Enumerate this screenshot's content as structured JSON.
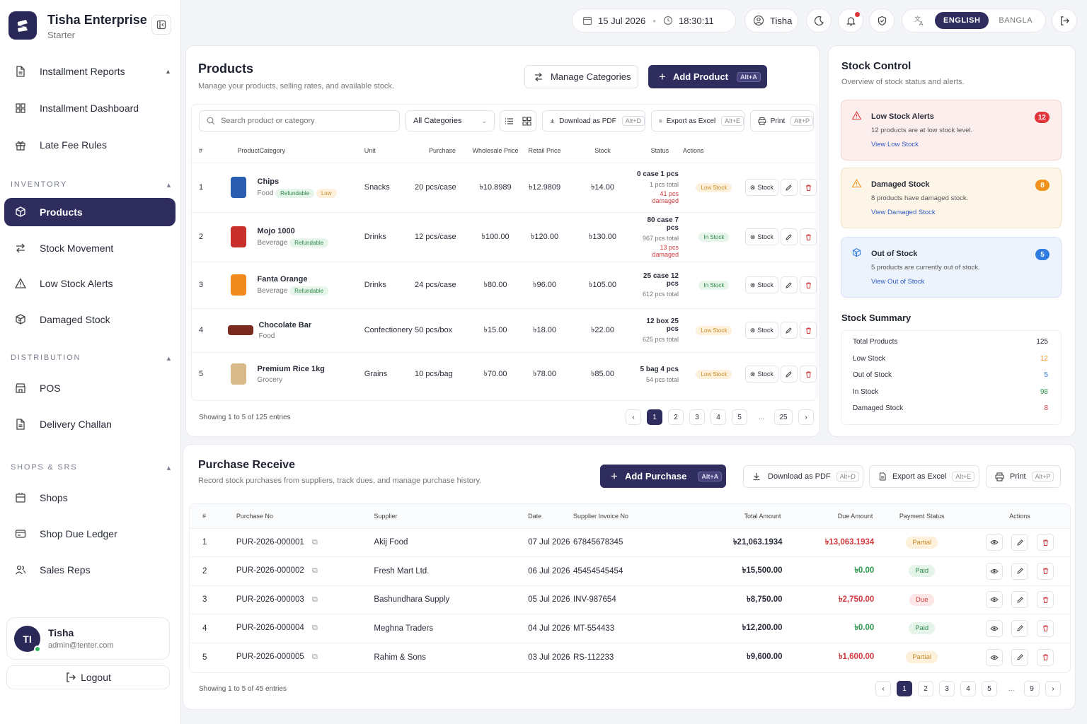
{
  "brand": {
    "name": "Tisha Enterprise",
    "plan": "Starter"
  },
  "sidebar": {
    "items_top": [
      {
        "label": "Installment Reports",
        "icon": "file-icon"
      },
      {
        "label": "Installment Dashboard",
        "icon": "grid-icon"
      },
      {
        "label": "Late Fee Rules",
        "icon": "gift-icon"
      }
    ],
    "inventory_label": "INVENTORY",
    "inventory": [
      {
        "label": "Products",
        "icon": "box-icon",
        "active": true
      },
      {
        "label": "Stock Movement",
        "icon": "arrows-icon"
      },
      {
        "label": "Low Stock Alerts",
        "icon": "warning-icon"
      },
      {
        "label": "Damaged Stock",
        "icon": "box-broken-icon"
      }
    ],
    "distribution_label": "DISTRIBUTION",
    "distribution": [
      {
        "label": "POS",
        "icon": "store-icon"
      },
      {
        "label": "Delivery Challan",
        "icon": "file-icon"
      }
    ],
    "shops_label": "SHOPS & SRS",
    "shops": [
      {
        "label": "Shops",
        "icon": "shop-icon"
      },
      {
        "label": "Shop Due Ledger",
        "icon": "ledger-icon"
      },
      {
        "label": "Sales Reps",
        "icon": "users-icon"
      }
    ]
  },
  "profile": {
    "initials": "TI",
    "name": "Tisha",
    "email": "admin@tenter.com",
    "logout": "Logout"
  },
  "topbar": {
    "date": "15 Jul 2026",
    "time": "18:30:11",
    "user": "Tisha",
    "lang_en": "ENGLISH",
    "lang_bn": "BANGLA"
  },
  "products": {
    "title": "Products",
    "subtitle": "Manage your products, selling rates, and available stock.",
    "manage_categories": "Manage Categories",
    "add_product": "Add Product",
    "add_product_kbd": "Alt+A",
    "search_placeholder": "Search product or category",
    "category_filter": "All Categories",
    "download_pdf": "Download as PDF",
    "download_pdf_kbd": "Alt+D",
    "export_excel": "Export as Excel",
    "export_excel_kbd": "Alt+E",
    "print": "Print",
    "print_kbd": "Alt+P",
    "columns": [
      "#",
      "Product",
      "Category",
      "Unit",
      "Purchase",
      "Wholesale Price",
      "Retail Price",
      "Stock",
      "Status",
      "Actions"
    ],
    "stock_button": "Stock",
    "rows": [
      {
        "n": "1",
        "name": "Chips",
        "type": "Food",
        "tags": [
          "Refundable",
          "Low"
        ],
        "category": "Snacks",
        "unit": "20 pcs/case",
        "purchase": "৳10.8989",
        "wholesale": "৳12.9809",
        "retail": "৳14.00",
        "stock": "0 case 1 pcs",
        "total": "1 pcs total",
        "damaged": "41 pcs damaged",
        "status": "Low Stock",
        "color": "#2a5db0"
      },
      {
        "n": "2",
        "name": "Mojo 1000",
        "type": "Beverage",
        "tags": [
          "Refundable"
        ],
        "category": "Drinks",
        "unit": "12 pcs/case",
        "purchase": "৳100.00",
        "wholesale": "৳120.00",
        "retail": "৳130.00",
        "stock": "80 case 7 pcs",
        "total": "967 pcs total",
        "damaged": "13 pcs damaged",
        "status": "In Stock",
        "color": "#c9302c"
      },
      {
        "n": "3",
        "name": "Fanta Orange",
        "type": "Beverage",
        "tags": [
          "Refundable"
        ],
        "category": "Drinks",
        "unit": "24 pcs/case",
        "purchase": "৳80.00",
        "wholesale": "৳96.00",
        "retail": "৳105.00",
        "stock": "25 case 12 pcs",
        "total": "612 pcs total",
        "damaged": "",
        "status": "In Stock",
        "color": "#f08a1c"
      },
      {
        "n": "4",
        "name": "Chocolate Bar",
        "type": "Food",
        "tags": [],
        "category": "Confectionery",
        "unit": "50 pcs/box",
        "purchase": "৳15.00",
        "wholesale": "৳18.00",
        "retail": "৳22.00",
        "stock": "12 box 25 pcs",
        "total": "625 pcs total",
        "damaged": "",
        "status": "Low Stock",
        "color": "#7a2a1e"
      },
      {
        "n": "5",
        "name": "Premium Rice 1kg",
        "type": "Grocery",
        "tags": [],
        "category": "Grains",
        "unit": "10 pcs/bag",
        "purchase": "৳70.00",
        "wholesale": "৳78.00",
        "retail": "৳85.00",
        "stock": "5 bag 4 pcs",
        "total": "54 pcs total",
        "damaged": "",
        "status": "Low Stock",
        "color": "#d7b98a"
      }
    ],
    "showing": "Showing 1 to 5 of 125 entries",
    "pages": [
      "1",
      "2",
      "3",
      "4",
      "5",
      "...",
      "25"
    ]
  },
  "stock_control": {
    "title": "Stock Control",
    "subtitle": "Overview of stock status and alerts.",
    "alerts": [
      {
        "title": "Low Stock Alerts",
        "text": "12 products are at low stock level.",
        "link": "View Low Stock",
        "count": "12",
        "bg": "#fdeeee",
        "border": "#f6d3d3",
        "badge": "#e0353a"
      },
      {
        "title": "Damaged Stock",
        "text": "8 products have damaged stock.",
        "link": "View Damaged Stock",
        "count": "8",
        "bg": "#fdf5e8",
        "border": "#f4e2c2",
        "badge": "#f0931e"
      },
      {
        "title": "Out of Stock",
        "text": "5 products are currently out of stock.",
        "link": "View Out of Stock",
        "count": "5",
        "bg": "#edf3fc",
        "border": "#d6e3f6",
        "badge": "#2f7be0"
      }
    ],
    "summary_title": "Stock Summary",
    "summary": [
      {
        "label": "Total Products",
        "value": "125",
        "color": "#1f2230"
      },
      {
        "label": "Low Stock",
        "value": "12",
        "color": "#f0931e"
      },
      {
        "label": "Out of Stock",
        "value": "5",
        "color": "#2f7be0"
      },
      {
        "label": "In Stock",
        "value": "98",
        "color": "#2d9a4e"
      },
      {
        "label": "Damaged Stock",
        "value": "8",
        "color": "#e0353a"
      }
    ]
  },
  "purchase": {
    "title": "Purchase Receive",
    "subtitle": "Record stock purchases from suppliers, track dues, and manage purchase history.",
    "add_purchase": "Add Purchase",
    "add_purchase_kbd": "Alt+A",
    "download_pdf": "Download as PDF",
    "download_pdf_kbd": "Alt+D",
    "export_excel": "Export as Excel",
    "export_excel_kbd": "Alt+E",
    "print": "Print",
    "print_kbd": "Alt+P",
    "columns": [
      "#",
      "Purchase No",
      "Supplier",
      "Date",
      "Supplier Invoice No",
      "Total Amount",
      "Due Amount",
      "Payment Status",
      "Actions"
    ],
    "rows": [
      {
        "n": "1",
        "no": "PUR-2026-000001",
        "supplier": "Akij Food",
        "date": "07 Jul 2026",
        "invoice": "67845678345",
        "total": "৳21,063.1934",
        "due": "৳13,063.1934",
        "status": "Partial"
      },
      {
        "n": "2",
        "no": "PUR-2026-000002",
        "supplier": "Fresh Mart Ltd.",
        "date": "06 Jul 2026",
        "invoice": "45454545454",
        "total": "৳15,500.00",
        "due": "৳0.00",
        "status": "Paid"
      },
      {
        "n": "3",
        "no": "PUR-2026-000003",
        "supplier": "Bashundhara Supply",
        "date": "05 Jul 2026",
        "invoice": "INV-987654",
        "total": "৳8,750.00",
        "due": "৳2,750.00",
        "status": "Due"
      },
      {
        "n": "4",
        "no": "PUR-2026-000004",
        "supplier": "Meghna Traders",
        "date": "04 Jul 2026",
        "invoice": "MT-554433",
        "total": "৳12,200.00",
        "due": "৳0.00",
        "status": "Paid"
      },
      {
        "n": "5",
        "no": "PUR-2026-000005",
        "supplier": "Rahim & Sons",
        "date": "03 Jul 2026",
        "invoice": "RS-112233",
        "total": "৳9,600.00",
        "due": "৳1,600.00",
        "status": "Partial"
      }
    ],
    "showing": "Showing 1 to 5 of 45 entries",
    "pages": [
      "1",
      "2",
      "3",
      "4",
      "5",
      "...",
      "9"
    ]
  }
}
